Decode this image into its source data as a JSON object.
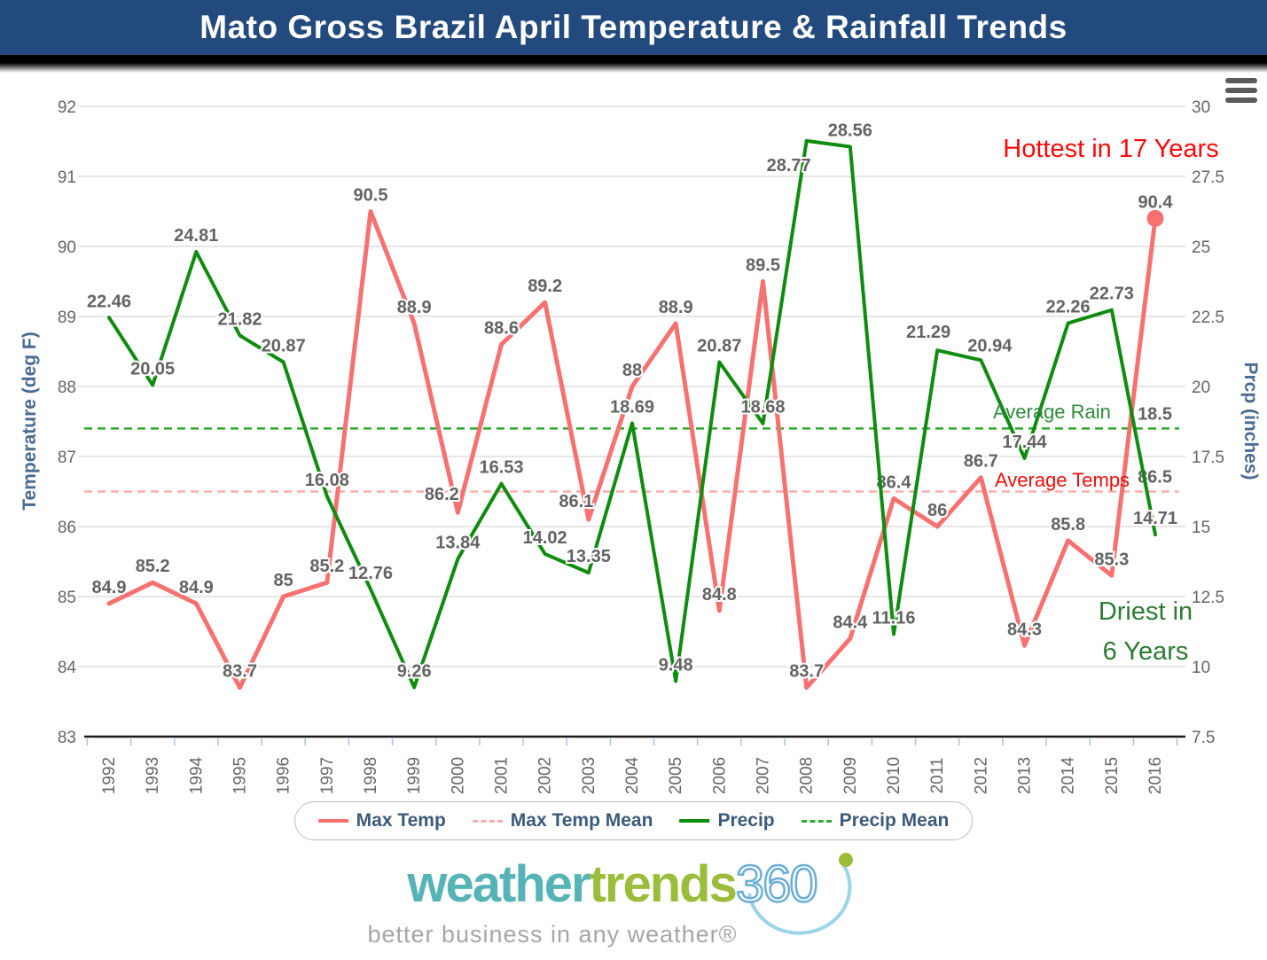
{
  "title_bar": {
    "title": "Mato Gross Brazil April Temperature & Rainfall Trends"
  },
  "chart_data": {
    "type": "line",
    "x": [
      1992,
      1993,
      1994,
      1995,
      1996,
      1997,
      1998,
      1999,
      2000,
      2001,
      2002,
      2003,
      2004,
      2005,
      2006,
      2007,
      2008,
      2009,
      2010,
      2011,
      2012,
      2013,
      2014,
      2015,
      2016
    ],
    "series": [
      {
        "name": "Max Temp",
        "axis": "left",
        "color": "#f87171",
        "width": 5,
        "end_marker": true,
        "values": [
          84.9,
          85.2,
          84.9,
          83.7,
          85,
          85.2,
          90.5,
          88.9,
          86.2,
          88.6,
          89.2,
          86.1,
          88,
          88.9,
          84.8,
          89.5,
          83.7,
          84.4,
          86.4,
          86,
          86.7,
          84.3,
          85.8,
          85.3,
          90.4
        ]
      },
      {
        "name": "Precip",
        "axis": "right",
        "color": "#0f8c0f",
        "width": 4,
        "end_marker": false,
        "values": [
          22.46,
          20.05,
          24.81,
          21.82,
          20.87,
          16.08,
          12.76,
          9.26,
          13.84,
          16.53,
          14.02,
          13.35,
          18.69,
          9.48,
          20.87,
          18.68,
          28.77,
          28.56,
          11.16,
          21.29,
          20.94,
          17.44,
          22.26,
          22.73,
          14.71
        ]
      }
    ],
    "mean_lines": [
      {
        "name": "Max Temp Mean",
        "axis": "left",
        "value": 86.5,
        "color": "#fbadad"
      },
      {
        "name": "Precip Mean",
        "axis": "right",
        "value": 18.5,
        "color": "#2fa82f"
      }
    ],
    "axes": {
      "left": {
        "title": "Temperature (deg F)",
        "min": 83,
        "max": 92,
        "ticks": [
          92,
          91,
          90,
          89,
          88,
          87,
          86,
          85,
          84,
          83
        ]
      },
      "right": {
        "title": "Prcp (inches)",
        "min": 7.5,
        "max": 30,
        "ticks": [
          30,
          27.5,
          25,
          22.5,
          20,
          17.5,
          15,
          12.5,
          10,
          7.5
        ]
      }
    },
    "grid": true,
    "legend_position": "bottom",
    "label_offsets": {
      "1.16": [
        -20,
        46
      ],
      "1.19": [
        -10,
        -2
      ],
      "1.20": [
        10,
        2
      ],
      "0.8": [
        -18,
        -2
      ],
      "0.11": [
        -14,
        -2
      ]
    },
    "annotations": {
      "hottest": "Hottest in 17 Years",
      "driest_line1": "Driest in",
      "driest_line2": "6 Years",
      "avg_rain": "Average Rain",
      "avg_temps": "Average Temps"
    }
  },
  "legend": {
    "items": [
      {
        "label": "Max Temp",
        "color": "#f87171",
        "dash": false
      },
      {
        "label": "Max Temp Mean",
        "color": "#fbadad",
        "dash": true
      },
      {
        "label": "Precip",
        "color": "#0f8c0f",
        "dash": false
      },
      {
        "label": "Precip Mean",
        "color": "#2fa82f",
        "dash": true
      }
    ]
  },
  "logo": {
    "word1": "weather",
    "word2": "trends",
    "word3": "360",
    "word1_color": "#56b3b6",
    "word2_color": "#9cbc3c",
    "word3_color": "#6aaed6",
    "swoosh_color": "#99d4e8",
    "dot_color": "#9cbc3c",
    "tagline": "better business in any weather®",
    "tagline_color": "#a6a6a6"
  }
}
